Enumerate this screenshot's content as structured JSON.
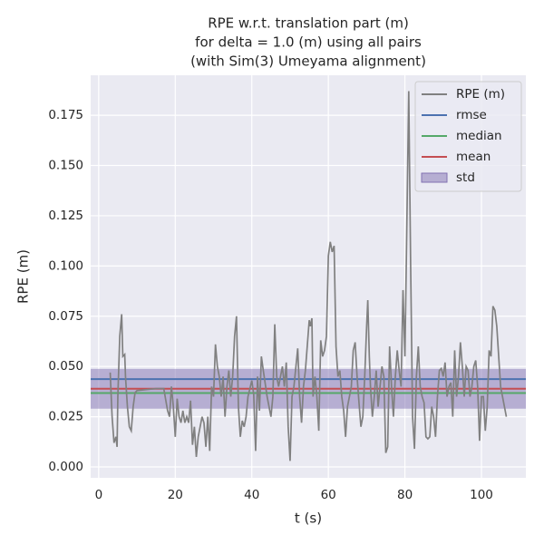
{
  "chart_data": {
    "type": "line",
    "title": [
      "RPE w.r.t. translation part (m)",
      "for delta = 1.0 (m) using all pairs",
      "(with Sim(3) Umeyama alignment)"
    ],
    "xlabel": "t (s)",
    "ylabel": "RPE (m)",
    "xlim": [
      -2.1,
      111.6
    ],
    "ylim": [
      -0.0054,
      0.1949
    ],
    "xticks": [
      0,
      20,
      40,
      60,
      80,
      100
    ],
    "yticks": [
      {
        "value": 0,
        "label": "0.000"
      },
      {
        "value": 0.025,
        "label": "0.025"
      },
      {
        "value": 0.05,
        "label": "0.050"
      },
      {
        "value": 0.075,
        "label": "0.075"
      },
      {
        "value": 0.1,
        "label": "0.100"
      },
      {
        "value": 0.125,
        "label": "0.125"
      },
      {
        "value": 0.15,
        "label": "0.150"
      },
      {
        "value": 0.175,
        "label": "0.175"
      }
    ],
    "grid": true,
    "legend": "upper right",
    "series": [
      {
        "name": "RPE (m)",
        "color": "#808080",
        "x": [
          3,
          3.5,
          4,
          4.5,
          4.8,
          5,
          5.5,
          6,
          6.3,
          6.8,
          7,
          7.5,
          8,
          8.5,
          9,
          9.5,
          10,
          15,
          17,
          18,
          18.5,
          19,
          19.5,
          20,
          20.5,
          21,
          21.5,
          22,
          22.5,
          23,
          23.5,
          24,
          24.5,
          25,
          25.5,
          26,
          27,
          27.5,
          28,
          28.5,
          29,
          29.5,
          30,
          30.5,
          31,
          31.5,
          32,
          32.5,
          33,
          33.5,
          34,
          34.5,
          35,
          35.5,
          36,
          36.5,
          37,
          37.5,
          38,
          38.5,
          39,
          40,
          40.5,
          41,
          41.5,
          42,
          42.5,
          43,
          44,
          45,
          45.5,
          46,
          46.5,
          47,
          48,
          48.5,
          49,
          49.5,
          50,
          50.5,
          51,
          52,
          52.5,
          53,
          53.5,
          54,
          55,
          55.3,
          55.7,
          56,
          56.5,
          57,
          57.5,
          58,
          58.5,
          59,
          59.5,
          60,
          60.5,
          61,
          61.5,
          62,
          62.5,
          63,
          63.5,
          64,
          64.5,
          65,
          66,
          66.5,
          67,
          67.5,
          68,
          68.5,
          69,
          69.5,
          70,
          70.3,
          70.7,
          71,
          71.5,
          72,
          72.5,
          73,
          73.5,
          74,
          74.5,
          75,
          75.5,
          76,
          76.5,
          77,
          77.5,
          78,
          78.5,
          79,
          79.5,
          80,
          80.5,
          81,
          81.5,
          82,
          82.5,
          83,
          83.5,
          84,
          84.5,
          85,
          85.5,
          86,
          86.5,
          87,
          87.5,
          88,
          88.5,
          89,
          89.5,
          90,
          90.5,
          91,
          91.5,
          92,
          92.5,
          93,
          93.5,
          94,
          94.5,
          95,
          95.5,
          96,
          96.5,
          97,
          97.5,
          98,
          98.5,
          99,
          99.5,
          100,
          100.5,
          101,
          101.5,
          102,
          102.5,
          103,
          103.5,
          104,
          104.5,
          105,
          106,
          106.5
        ],
        "values": [
          0.047,
          0.025,
          0.012,
          0.015,
          0.01,
          0.035,
          0.065,
          0.076,
          0.055,
          0.056,
          0.045,
          0.03,
          0.02,
          0.018,
          0.03,
          0.037,
          0.038,
          0.039,
          0.039,
          0.028,
          0.025,
          0.04,
          0.03,
          0.015,
          0.034,
          0.025,
          0.022,
          0.028,
          0.022,
          0.025,
          0.022,
          0.033,
          0.011,
          0.02,
          0.005,
          0.015,
          0.025,
          0.022,
          0.01,
          0.025,
          0.008,
          0.04,
          0.035,
          0.061,
          0.05,
          0.045,
          0.035,
          0.045,
          0.025,
          0.04,
          0.048,
          0.035,
          0.045,
          0.065,
          0.075,
          0.03,
          0.015,
          0.023,
          0.02,
          0.025,
          0.035,
          0.043,
          0.036,
          0.008,
          0.045,
          0.028,
          0.055,
          0.048,
          0.035,
          0.025,
          0.035,
          0.071,
          0.045,
          0.04,
          0.05,
          0.04,
          0.052,
          0.02,
          0.003,
          0.035,
          0.04,
          0.059,
          0.035,
          0.022,
          0.04,
          0.048,
          0.073,
          0.07,
          0.074,
          0.035,
          0.045,
          0.035,
          0.018,
          0.063,
          0.055,
          0.058,
          0.065,
          0.105,
          0.112,
          0.107,
          0.11,
          0.06,
          0.045,
          0.048,
          0.035,
          0.028,
          0.015,
          0.03,
          0.04,
          0.058,
          0.062,
          0.045,
          0.032,
          0.02,
          0.025,
          0.045,
          0.07,
          0.083,
          0.055,
          0.04,
          0.025,
          0.035,
          0.048,
          0.03,
          0.04,
          0.05,
          0.045,
          0.007,
          0.01,
          0.06,
          0.04,
          0.025,
          0.045,
          0.058,
          0.048,
          0.04,
          0.088,
          0.055,
          0.12,
          0.187,
          0.1,
          0.025,
          0.009,
          0.045,
          0.06,
          0.04,
          0.035,
          0.032,
          0.015,
          0.014,
          0.015,
          0.03,
          0.025,
          0.015,
          0.035,
          0.048,
          0.049,
          0.045,
          0.052,
          0.035,
          0.04,
          0.042,
          0.025,
          0.058,
          0.035,
          0.045,
          0.062,
          0.05,
          0.035,
          0.05,
          0.048,
          0.035,
          0.04,
          0.05,
          0.053,
          0.04,
          0.013,
          0.035,
          0.035,
          0.018,
          0.03,
          0.058,
          0.055,
          0.08,
          0.078,
          0.07,
          0.055,
          0.04,
          0.03,
          0.025
        ]
      }
    ],
    "hlines": [
      {
        "name": "rmse",
        "color": "#4c72b0",
        "value": 0.0437
      },
      {
        "name": "median",
        "color": "#55a868",
        "value": 0.0368
      },
      {
        "name": "mean",
        "color": "#c44e52",
        "value": 0.0389
      }
    ],
    "band": {
      "name": "std",
      "color": "#8172b2",
      "value": 0.0099
    }
  }
}
